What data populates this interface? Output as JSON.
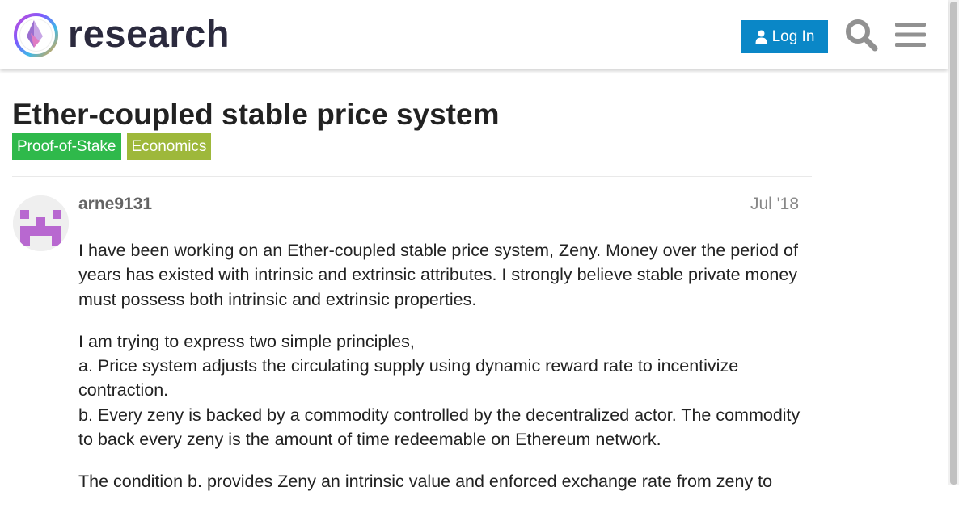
{
  "header": {
    "brand": "research",
    "login_label": "Log In",
    "icons": {
      "login": "user-icon",
      "search": "search-icon",
      "menu": "hamburger-menu-icon"
    },
    "accent_color": "#0a87c7"
  },
  "topic": {
    "title": "Ether-coupled stable price system",
    "tags": [
      {
        "label": "Proof-of-Stake",
        "color": "#2fb94b"
      },
      {
        "label": "Economics",
        "color": "#9eb83b"
      }
    ]
  },
  "post": {
    "username": "arne9131",
    "date": "Jul '18",
    "avatar_color": "#b868d0",
    "paragraphs": [
      [
        "I have been working on an Ether-coupled stable price system, Zeny. Money over the period of years has existed with intrinsic and extrinsic attributes. I strongly believe stable private money must possess both intrinsic and extrinsic properties."
      ],
      [
        "I am trying to express two simple principles,",
        "a. Price system adjusts the circulating supply using dynamic reward rate to incentivize contraction.",
        "b. Every zeny is backed by a commodity controlled by the decentralized actor. The commodity to back every zeny is the amount of time redeemable on Ethereum network."
      ],
      [
        "The condition b. provides Zeny an intrinsic value and enforced exchange rate from zeny to"
      ]
    ]
  }
}
